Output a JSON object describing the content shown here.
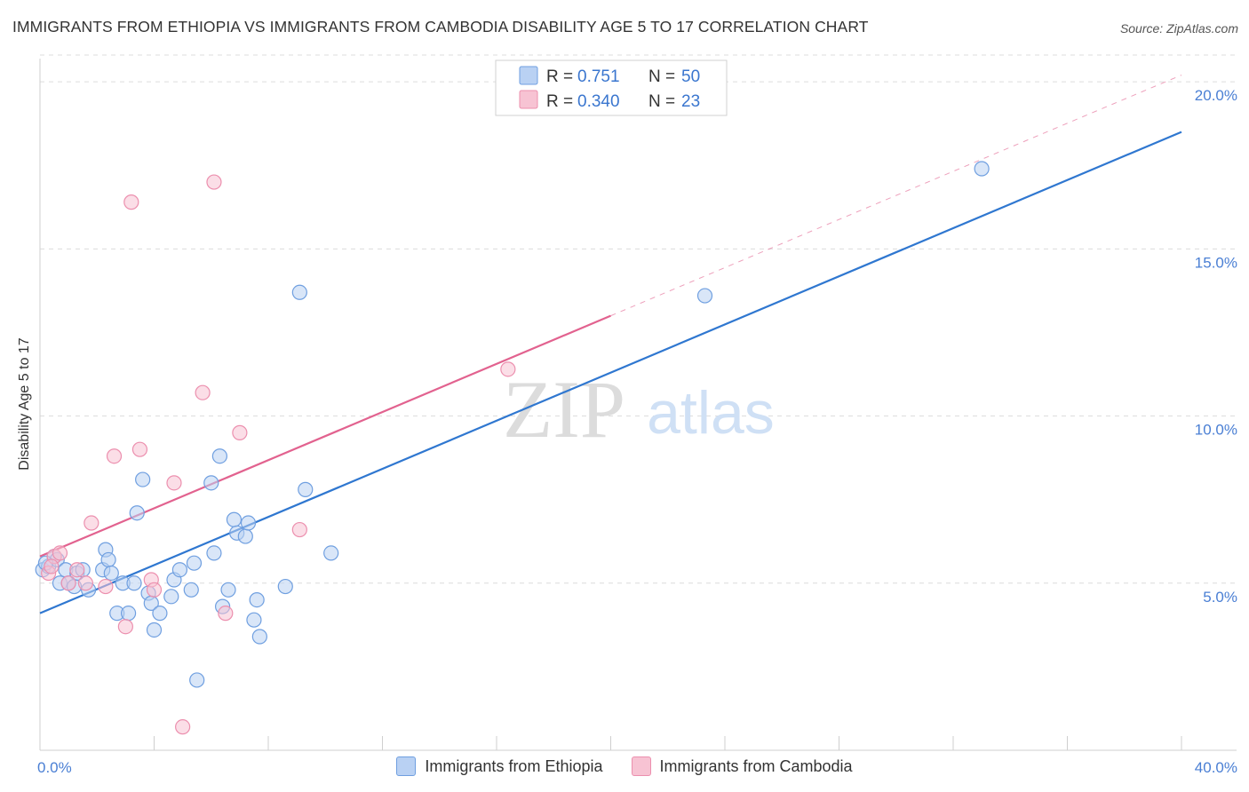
{
  "title": "IMMIGRANTS FROM ETHIOPIA VS IMMIGRANTS FROM CAMBODIA DISABILITY AGE 5 TO 17 CORRELATION CHART",
  "source": "Source: ZipAtlas.com",
  "watermark": {
    "zip": "ZIP",
    "atlas": "atlas"
  },
  "chart_data": {
    "type": "scatter",
    "title": "IMMIGRANTS FROM ETHIOPIA VS IMMIGRANTS FROM CAMBODIA DISABILITY AGE 5 TO 17 CORRELATION CHART",
    "xlabel": "",
    "ylabel": "Disability Age 5 to 17",
    "xlim": [
      0,
      40
    ],
    "ylim": [
      0,
      20.8
    ],
    "x_tick_labels": [
      "0.0%",
      "40.0%"
    ],
    "y_ticks": [
      5,
      10,
      15,
      20
    ],
    "y_tick_labels": [
      "5.0%",
      "10.0%",
      "15.0%",
      "20.0%"
    ],
    "grid": true,
    "legend_position": "top-center",
    "series": [
      {
        "name": "Immigrants from Ethiopia",
        "color": "#6f9fe0",
        "fill": "#b9d1f3",
        "line_color": "#2f77d0",
        "R": "0.751",
        "N": "50",
        "trend": {
          "x": [
            0,
            40
          ],
          "y": [
            4.1,
            18.5
          ],
          "style": "solid"
        },
        "points": [
          [
            0.1,
            5.4
          ],
          [
            0.3,
            5.5
          ],
          [
            0.5,
            5.8
          ],
          [
            0.6,
            5.7
          ],
          [
            0.7,
            5.0
          ],
          [
            0.9,
            5.4
          ],
          [
            1.0,
            5.0
          ],
          [
            1.2,
            4.9
          ],
          [
            1.3,
            5.3
          ],
          [
            1.5,
            5.4
          ],
          [
            1.7,
            4.8
          ],
          [
            2.2,
            5.4
          ],
          [
            2.3,
            6.0
          ],
          [
            2.4,
            5.7
          ],
          [
            2.5,
            5.3
          ],
          [
            2.7,
            4.1
          ],
          [
            2.9,
            5.0
          ],
          [
            3.1,
            4.1
          ],
          [
            3.3,
            5.0
          ],
          [
            3.4,
            7.1
          ],
          [
            3.6,
            8.1
          ],
          [
            3.8,
            4.7
          ],
          [
            3.9,
            4.4
          ],
          [
            4.0,
            3.6
          ],
          [
            4.2,
            4.1
          ],
          [
            4.6,
            4.6
          ],
          [
            4.7,
            5.1
          ],
          [
            4.9,
            5.4
          ],
          [
            5.3,
            4.8
          ],
          [
            5.4,
            5.6
          ],
          [
            5.5,
            2.1
          ],
          [
            6.0,
            8.0
          ],
          [
            6.1,
            5.9
          ],
          [
            6.3,
            8.8
          ],
          [
            6.4,
            4.3
          ],
          [
            6.6,
            4.8
          ],
          [
            6.8,
            6.9
          ],
          [
            6.9,
            6.5
          ],
          [
            7.2,
            6.4
          ],
          [
            7.3,
            6.8
          ],
          [
            7.5,
            3.9
          ],
          [
            7.6,
            4.5
          ],
          [
            7.7,
            3.4
          ],
          [
            8.6,
            4.9
          ],
          [
            9.1,
            13.7
          ],
          [
            9.3,
            7.8
          ],
          [
            10.2,
            5.9
          ],
          [
            23.3,
            13.6
          ],
          [
            33.0,
            17.4
          ],
          [
            0.2,
            5.6
          ]
        ]
      },
      {
        "name": "Immigrants from Cambodia",
        "color": "#ec8fae",
        "fill": "#f7c3d3",
        "line_color": "#e2628f",
        "R": "0.340",
        "N": "23",
        "trend": {
          "x": [
            0,
            20
          ],
          "y": [
            5.8,
            13.0
          ],
          "style": "solid",
          "extension": {
            "x": [
              20,
              40
            ],
            "y": [
              13.0,
              20.2
            ],
            "style": "dashed"
          }
        },
        "points": [
          [
            0.3,
            5.3
          ],
          [
            0.5,
            5.8
          ],
          [
            0.7,
            5.9
          ],
          [
            1.0,
            5.0
          ],
          [
            1.3,
            5.4
          ],
          [
            1.6,
            5.0
          ],
          [
            1.8,
            6.8
          ],
          [
            2.3,
            4.9
          ],
          [
            2.6,
            8.8
          ],
          [
            3.0,
            3.7
          ],
          [
            3.2,
            16.4
          ],
          [
            3.5,
            9.0
          ],
          [
            3.9,
            5.1
          ],
          [
            4.0,
            4.8
          ],
          [
            4.7,
            8.0
          ],
          [
            5.0,
            0.7
          ],
          [
            5.7,
            10.7
          ],
          [
            6.1,
            17.0
          ],
          [
            6.5,
            4.1
          ],
          [
            7.0,
            9.5
          ],
          [
            9.1,
            6.6
          ],
          [
            16.4,
            11.4
          ],
          [
            0.4,
            5.5
          ]
        ]
      }
    ]
  },
  "legend": {
    "rows": [
      {
        "r_label": "R =",
        "r_value": "0.751",
        "n_label": "N =",
        "n_value": "50"
      },
      {
        "r_label": "R =",
        "r_value": "0.340",
        "n_label": "N =",
        "n_value": "23"
      }
    ]
  },
  "bottom_legend": {
    "items": [
      {
        "label": "Immigrants from Ethiopia",
        "fill": "#b9d1f3",
        "stroke": "#6f9fe0"
      },
      {
        "label": "Immigrants from Cambodia",
        "fill": "#f7c3d3",
        "stroke": "#ec8fae"
      }
    ]
  }
}
